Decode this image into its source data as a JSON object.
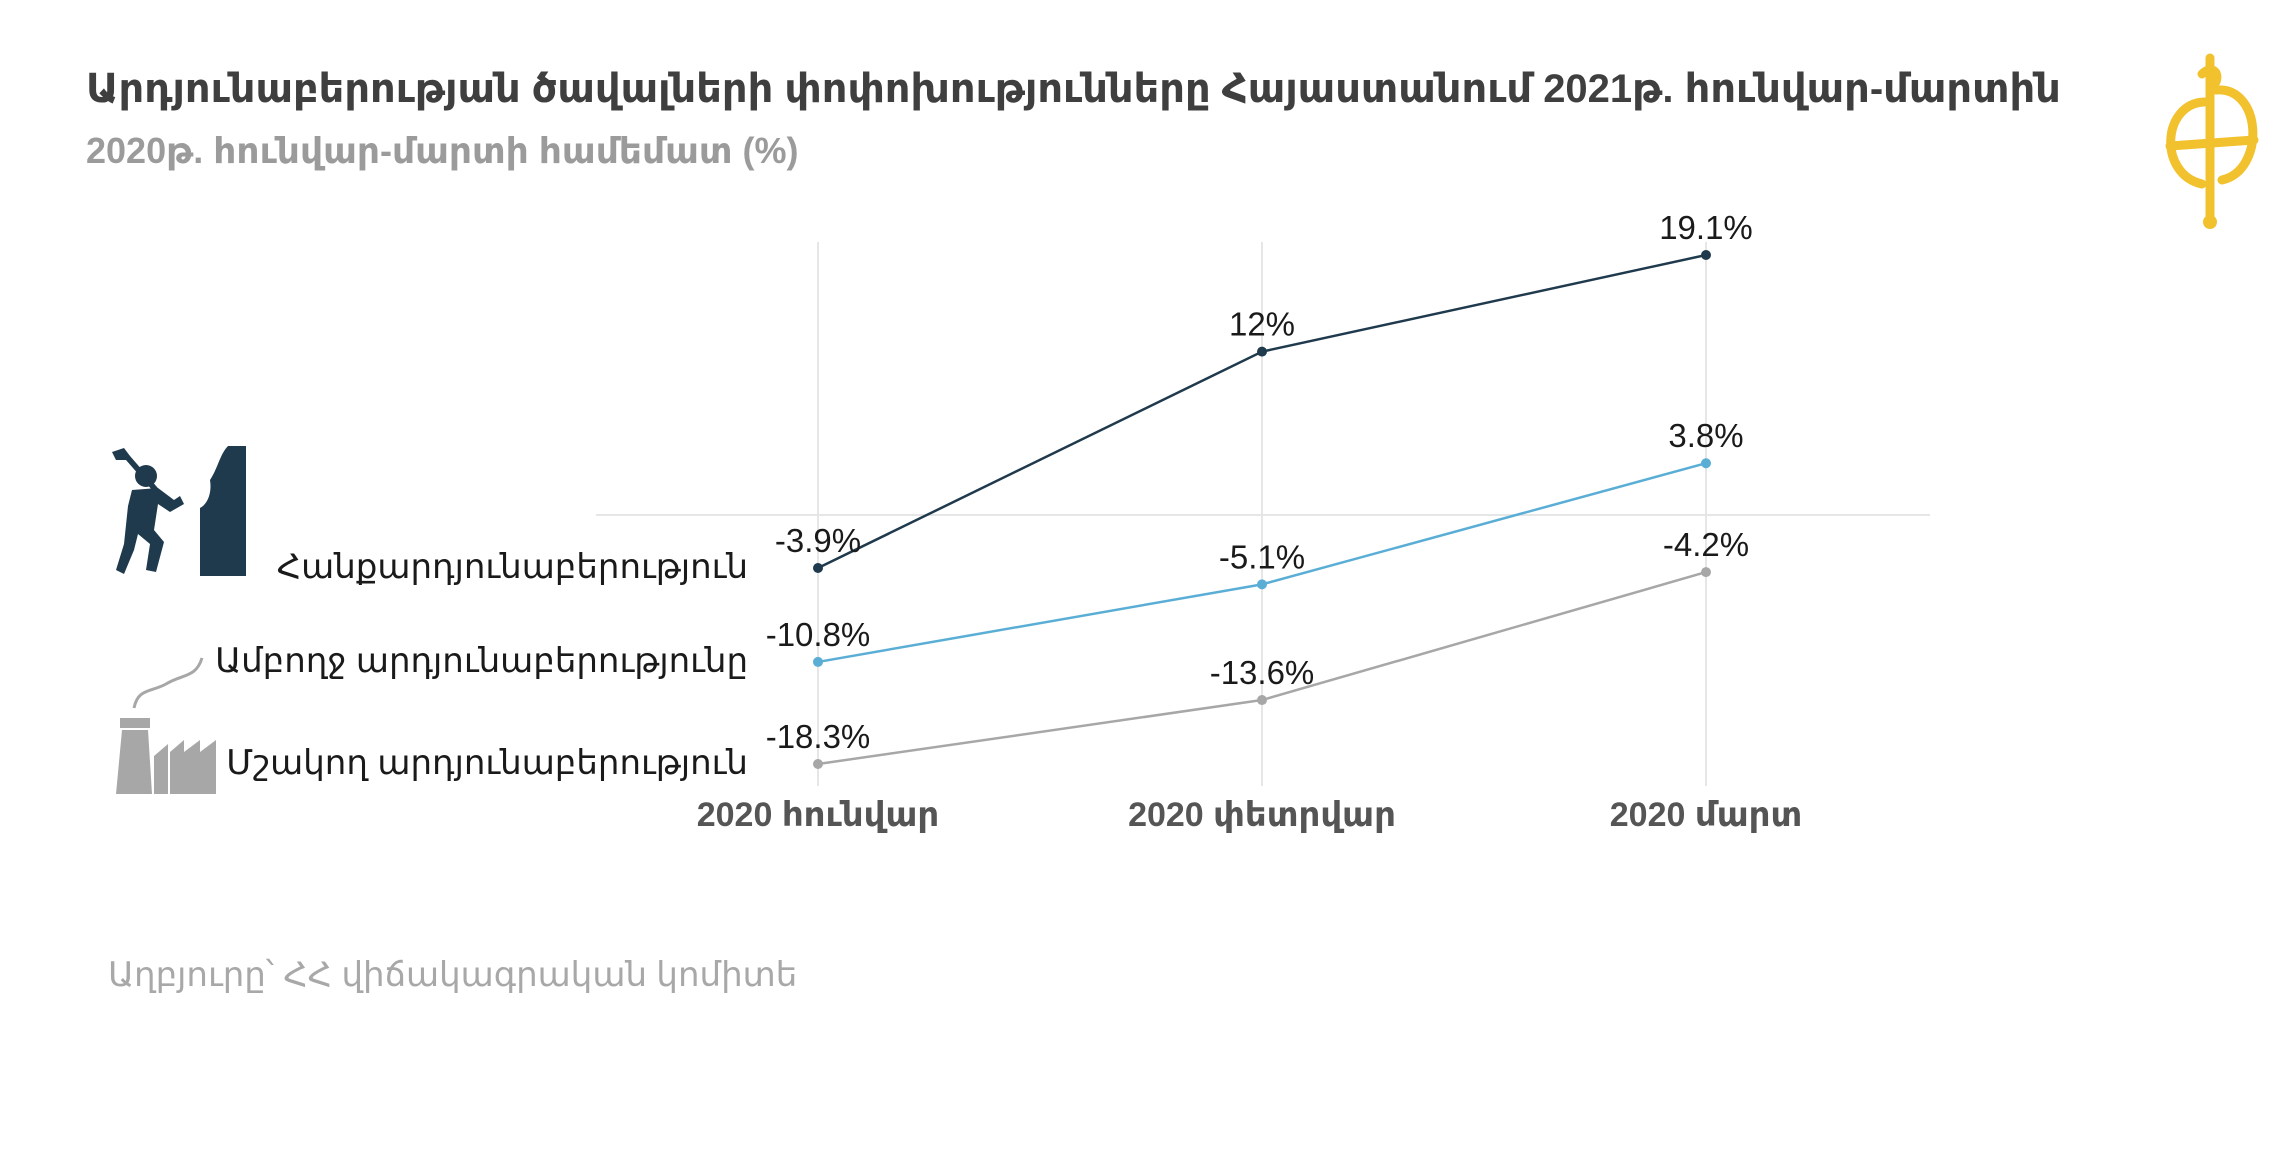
{
  "title": "Արդյունաբերության  ծավալների փոփոխությունները Հայաստանում 2021թ. հունվար-մարտին",
  "subtitle": "2020թ. հունվար-մարտի համեմատ (%)",
  "source": "Աղբյուրը՝ ՀՀ վիճակագրական կոմիտե",
  "icons": {
    "miner": "miner-icon",
    "factory": "factory-icon",
    "logo": "logo-icon"
  },
  "chart_data": {
    "type": "line",
    "categories": [
      "2020 հունվար",
      "2020 փետրվար",
      "2020 մարտ"
    ],
    "series": [
      {
        "name": "Հանքարդյունաբերություն",
        "values": [
          -3.9,
          12,
          19.1
        ],
        "labels": [
          "-3.9%",
          "12%",
          "19.1%"
        ],
        "color": "#1f3a4d"
      },
      {
        "name": "Ամբողջ արդյունաբերությունը",
        "values": [
          -10.8,
          -5.1,
          3.8
        ],
        "labels": [
          "-10.8%",
          "-5.1%",
          "3.8%"
        ],
        "color": "#5aaed6"
      },
      {
        "name": "Մշակող արդյունաբերություն",
        "values": [
          -18.3,
          -13.6,
          -4.2
        ],
        "labels": [
          "-18.3%",
          "-13.6%",
          "-4.2%"
        ],
        "color": "#a7a7a7"
      }
    ],
    "ylim": [
      -18.3,
      19.1
    ],
    "grid": true
  },
  "colors": {
    "logo": "#f2c12e",
    "icons": "#1f3a4d",
    "factory": "#a7a7a7"
  }
}
